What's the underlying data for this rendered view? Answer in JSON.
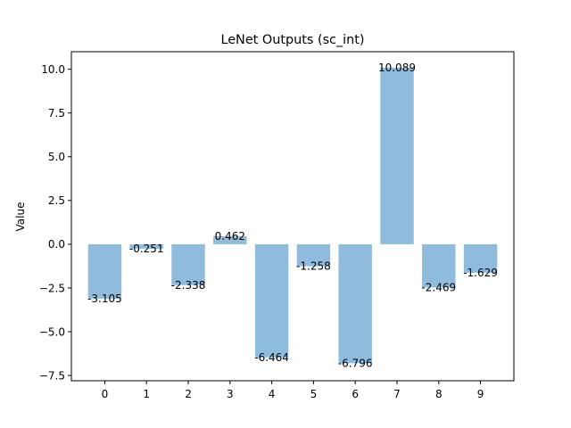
{
  "chart_data": {
    "type": "bar",
    "title": "LeNet Outputs (sc_int)",
    "xlabel": "",
    "ylabel": "Value",
    "categories": [
      "0",
      "1",
      "2",
      "3",
      "4",
      "5",
      "6",
      "7",
      "8",
      "9"
    ],
    "values": [
      -3.105,
      -0.251,
      -2.338,
      0.462,
      -6.464,
      -1.258,
      -6.796,
      10.089,
      -2.469,
      -1.629
    ],
    "data_labels": [
      "-3.105",
      "-0.251",
      "-2.338",
      "0.462",
      "-6.464",
      "-1.258",
      "-6.796",
      "10.089",
      "-2.469",
      "-1.629"
    ],
    "ylim": [
      -7.8,
      11.0
    ],
    "yticks": [
      -7.5,
      -5.0,
      -2.5,
      0.0,
      2.5,
      5.0,
      7.5,
      10.0
    ],
    "ytick_labels": [
      "−7.5",
      "−5.0",
      "−2.5",
      "0.0",
      "2.5",
      "5.0",
      "7.5",
      "10.0"
    ],
    "bar_color": "#8fbbdc",
    "grid": false
  }
}
